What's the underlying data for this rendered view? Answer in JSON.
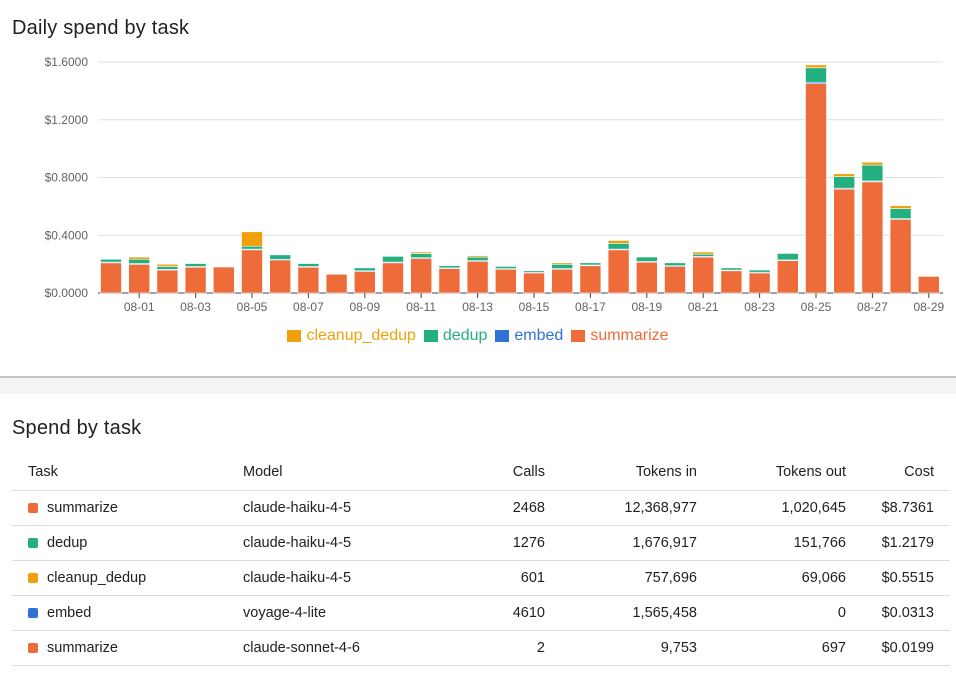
{
  "chart_section": {
    "title": "Daily spend by task"
  },
  "table_section": {
    "title": "Spend by task"
  },
  "colors": {
    "cleanup_dedup": "#f0a10a",
    "dedup": "#23b07e",
    "embed": "#2f72d4",
    "summarize": "#ee6b3a"
  },
  "chart_data": {
    "type": "bar",
    "stacked": true,
    "title": "Daily spend by task",
    "ylim": [
      0,
      1.6
    ],
    "yticks": [
      "$0.0000",
      "$0.4000",
      "$0.8000",
      "$1.2000",
      "$1.6000"
    ],
    "grid": true,
    "legend_position": "bottom",
    "categories": [
      "07-31",
      "08-01",
      "08-02",
      "08-03",
      "08-04",
      "08-05",
      "08-06",
      "08-07",
      "08-08",
      "08-09",
      "08-10",
      "08-11",
      "08-12",
      "08-13",
      "08-14",
      "08-15",
      "08-16",
      "08-17",
      "08-18",
      "08-19",
      "08-20",
      "08-21",
      "08-22",
      "08-23",
      "08-24",
      "08-25",
      "08-26",
      "08-27",
      "08-28",
      "08-29"
    ],
    "xtick_labels": [
      "08-01",
      "08-03",
      "08-05",
      "08-07",
      "08-09",
      "08-11",
      "08-13",
      "08-15",
      "08-17",
      "08-19",
      "08-21",
      "08-23",
      "08-25",
      "08-27",
      "08-29"
    ],
    "series": [
      {
        "name": "summarize",
        "values": [
          0.21,
          0.2,
          0.16,
          0.18,
          0.18,
          0.3,
          0.23,
          0.18,
          0.13,
          0.15,
          0.21,
          0.24,
          0.17,
          0.22,
          0.165,
          0.14,
          0.165,
          0.19,
          0.3,
          0.215,
          0.185,
          0.25,
          0.155,
          0.14,
          0.225,
          1.45,
          0.72,
          0.77,
          0.51,
          0.115
        ]
      },
      {
        "name": "embed",
        "values": [
          0.004,
          0.004,
          0.004,
          0.004,
          0.0,
          0.004,
          0.004,
          0.004,
          0.0,
          0.004,
          0.004,
          0.004,
          0.004,
          0.004,
          0.004,
          0.004,
          0.004,
          0.004,
          0.004,
          0.004,
          0.004,
          0.004,
          0.004,
          0.004,
          0.004,
          0.01,
          0.006,
          0.006,
          0.005,
          0.0
        ]
      },
      {
        "name": "dedup",
        "values": [
          0.02,
          0.03,
          0.02,
          0.02,
          0.0,
          0.02,
          0.03,
          0.02,
          0.0,
          0.02,
          0.04,
          0.03,
          0.015,
          0.025,
          0.015,
          0.01,
          0.03,
          0.015,
          0.04,
          0.03,
          0.02,
          0.015,
          0.015,
          0.015,
          0.045,
          0.1,
          0.08,
          0.11,
          0.07,
          0.0
        ]
      },
      {
        "name": "cleanup_dedup",
        "values": [
          0.0,
          0.015,
          0.015,
          0.0,
          0.0,
          0.1,
          0.0,
          0.0,
          0.0,
          0.0,
          0.0,
          0.01,
          0.0,
          0.01,
          0.0,
          0.0,
          0.01,
          0.0,
          0.02,
          0.0,
          0.0,
          0.015,
          0.0,
          0.0,
          0.0,
          0.02,
          0.02,
          0.02,
          0.02,
          0.0
        ]
      }
    ]
  },
  "table": {
    "columns": [
      "Task",
      "Model",
      "Calls",
      "Tokens in",
      "Tokens out",
      "Cost"
    ],
    "rows": [
      {
        "color_key": "summarize",
        "task": "summarize",
        "model": "claude-haiku-4-5",
        "calls": "2468",
        "tokens_in": "12,368,977",
        "tokens_out": "1,020,645",
        "cost": "$8.7361"
      },
      {
        "color_key": "dedup",
        "task": "dedup",
        "model": "claude-haiku-4-5",
        "calls": "1276",
        "tokens_in": "1,676,917",
        "tokens_out": "151,766",
        "cost": "$1.2179"
      },
      {
        "color_key": "cleanup_dedup",
        "task": "cleanup_dedup",
        "model": "claude-haiku-4-5",
        "calls": "601",
        "tokens_in": "757,696",
        "tokens_out": "69,066",
        "cost": "$0.5515"
      },
      {
        "color_key": "embed",
        "task": "embed",
        "model": "voyage-4-lite",
        "calls": "4610",
        "tokens_in": "1,565,458",
        "tokens_out": "0",
        "cost": "$0.0313"
      },
      {
        "color_key": "summarize",
        "task": "summarize",
        "model": "claude-sonnet-4-6",
        "calls": "2",
        "tokens_in": "9,753",
        "tokens_out": "697",
        "cost": "$0.0199"
      }
    ]
  }
}
